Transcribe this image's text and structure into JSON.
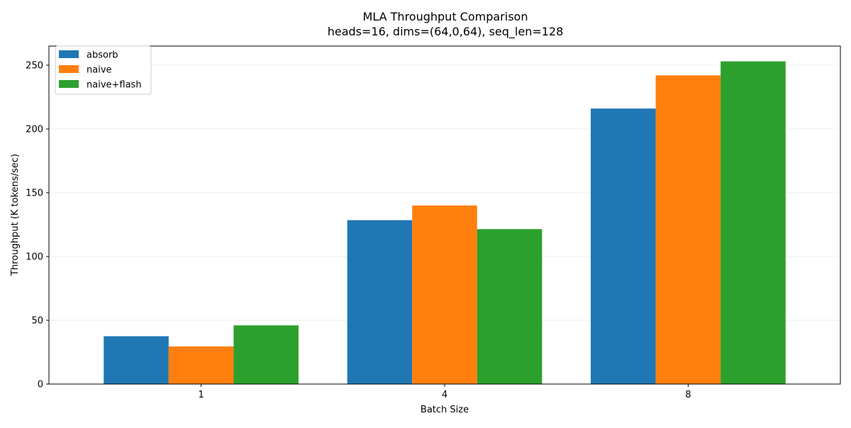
{
  "chart_data": {
    "type": "bar",
    "title": "MLA Throughput Comparison",
    "subtitle": "heads=16, dims=(64,0,64), seq_len=128",
    "xlabel": "Batch Size",
    "ylabel": "Throughput (K tokens/sec)",
    "categories": [
      "1",
      "4",
      "8"
    ],
    "series": [
      {
        "name": "absorb",
        "color": "#1f77b4",
        "values": [
          37.5,
          128.5,
          216.0
        ]
      },
      {
        "name": "naive",
        "color": "#ff7f0e",
        "values": [
          29.5,
          140.0,
          242.0
        ]
      },
      {
        "name": "naive+flash",
        "color": "#2ca02c",
        "values": [
          46.0,
          121.5,
          253.0
        ]
      }
    ],
    "ylim": [
      0,
      265
    ],
    "yticks": [
      0,
      50,
      100,
      150,
      200,
      250
    ],
    "grid": "y",
    "legend_position": "top-left"
  }
}
